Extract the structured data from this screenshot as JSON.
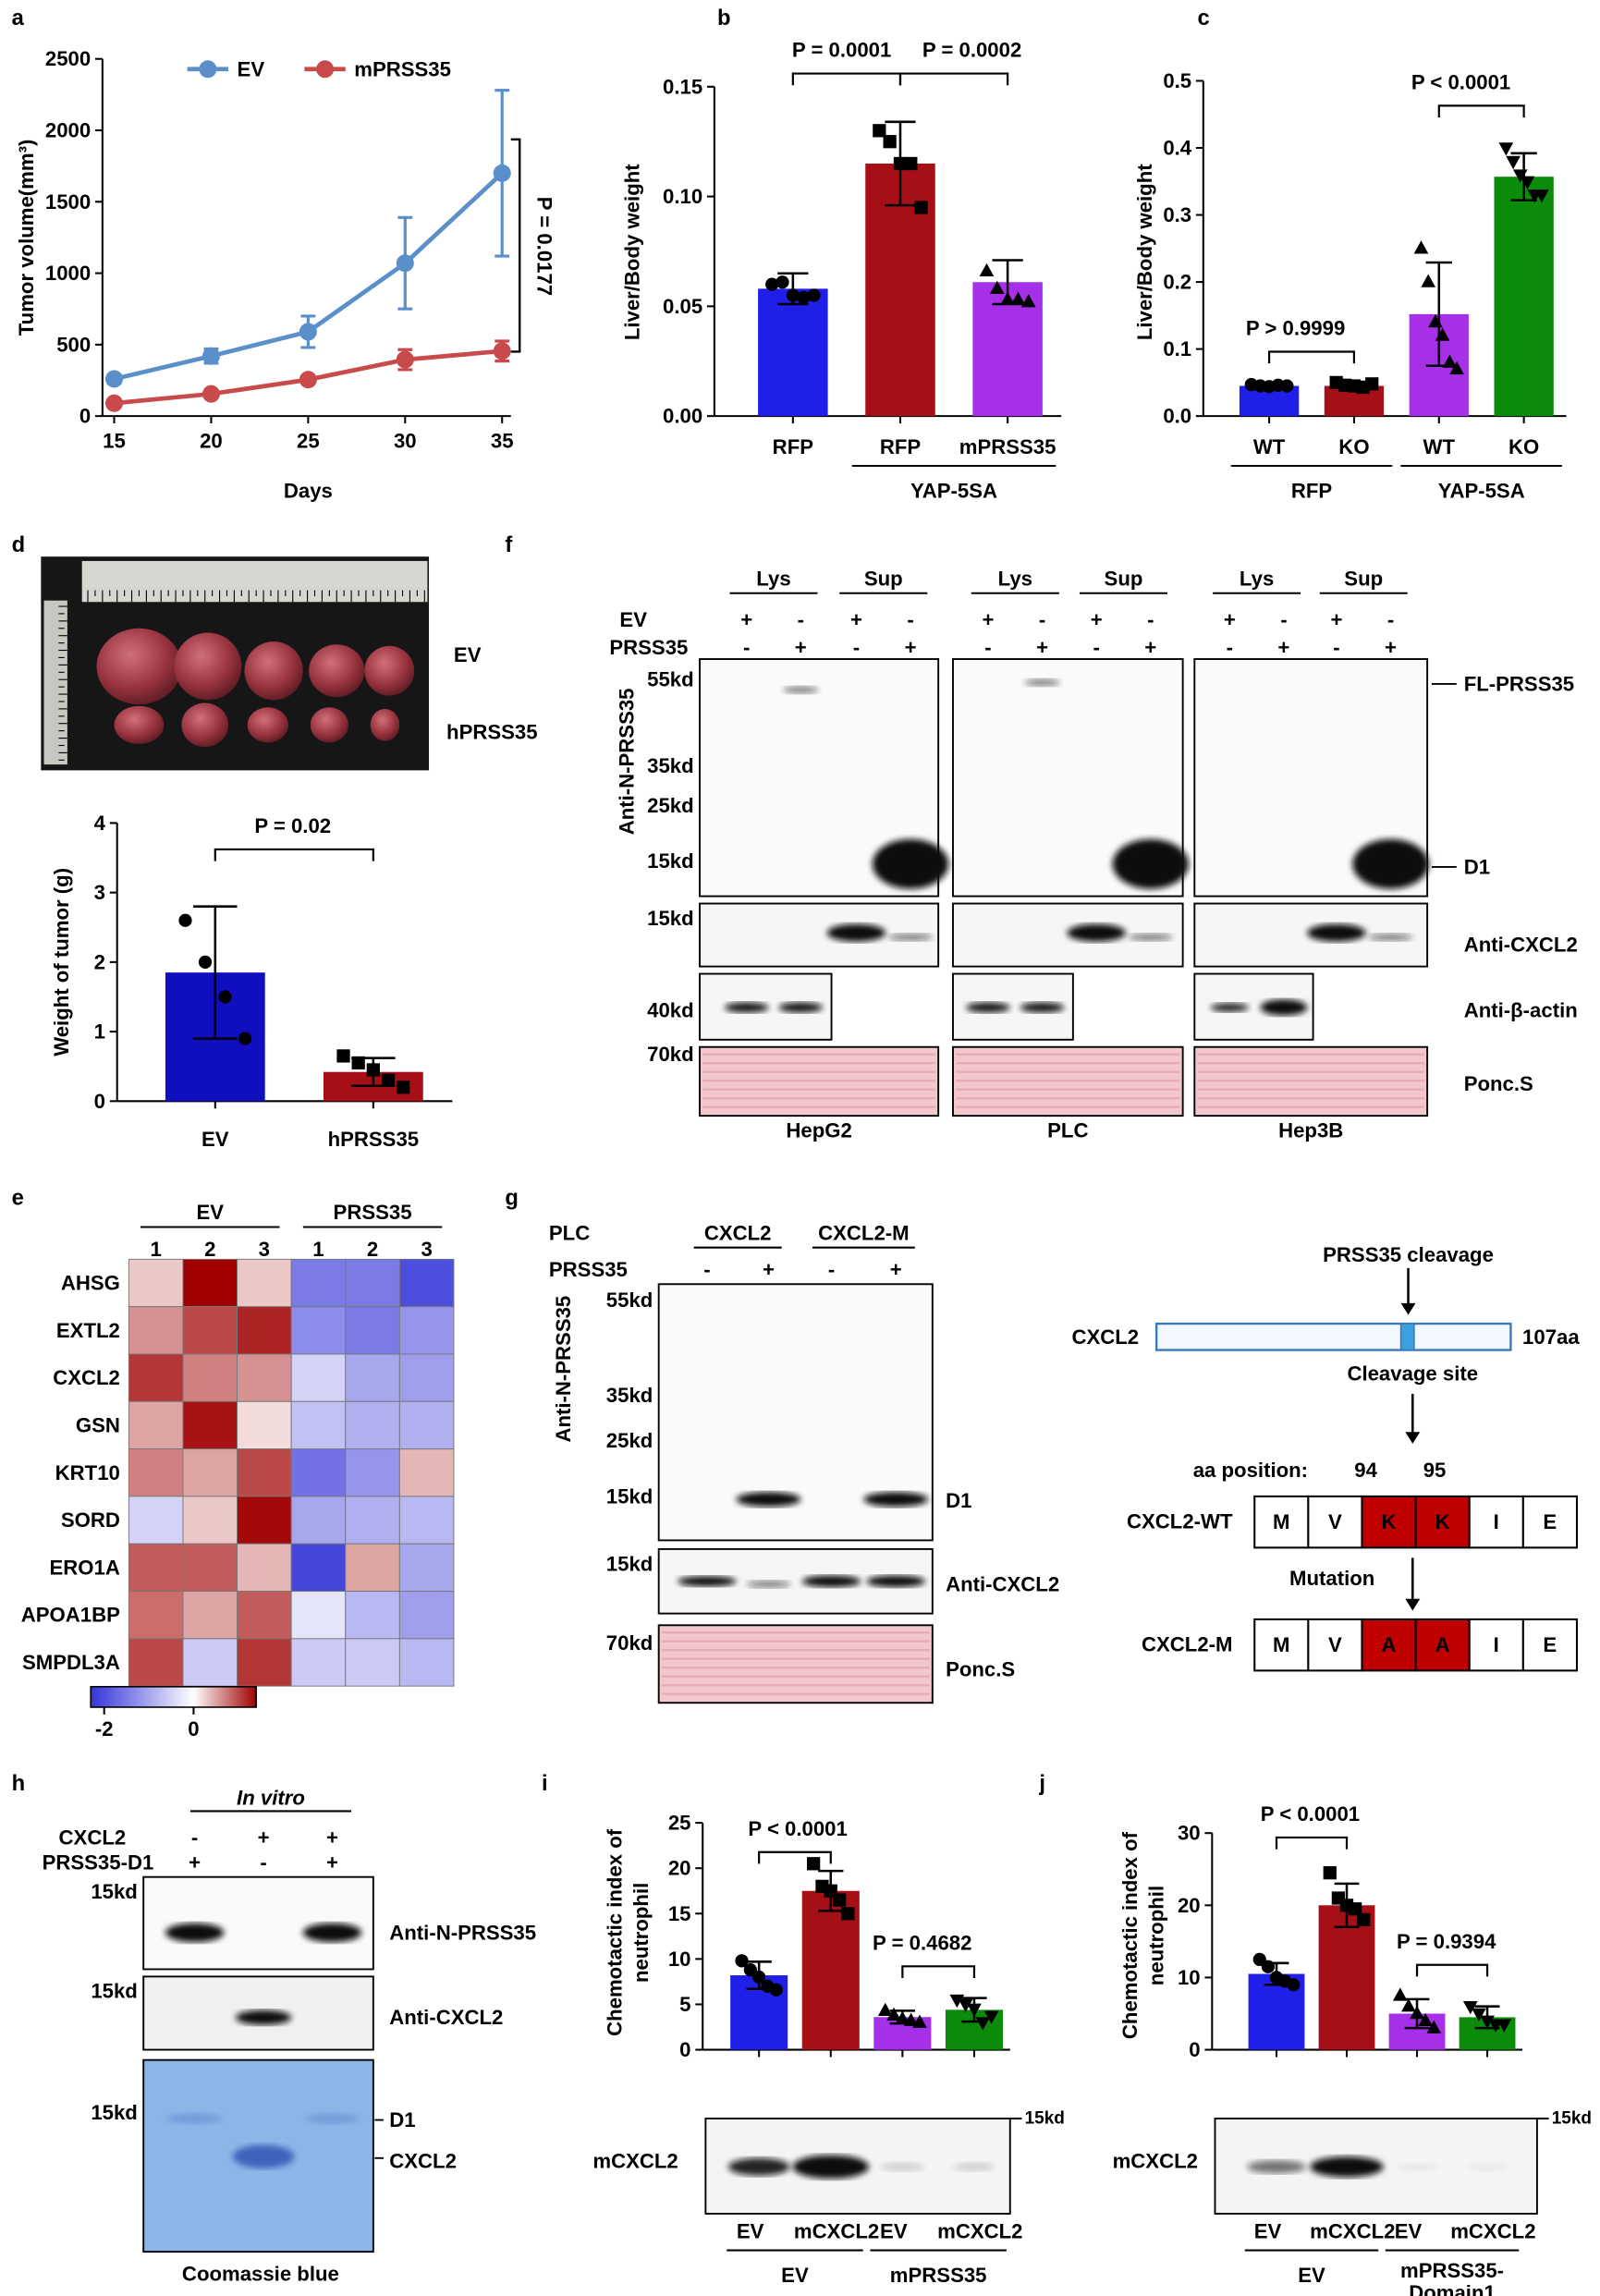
{
  "panel_labels": [
    "a",
    "b",
    "c",
    "d",
    "e",
    "f",
    "g",
    "h",
    "i",
    "j"
  ],
  "chart_data": [
    {
      "type": "line",
      "x": [
        15,
        20,
        25,
        30,
        35
      ],
      "xlim": [
        15,
        35
      ],
      "xticks": [
        15,
        20,
        25,
        30,
        35
      ],
      "ylim": [
        0,
        2500
      ],
      "yticks": [
        0,
        500,
        1000,
        1500,
        2000,
        2500
      ],
      "xlabel": "Days",
      "ylabel": "Tumor volume(mm³)",
      "series": [
        {
          "name": "EV",
          "color": "#5b8fc9",
          "values": [
            260,
            420,
            590,
            1070,
            1700
          ],
          "errors": [
            30,
            50,
            110,
            320,
            580
          ]
        },
        {
          "name": "mPRSS35",
          "color": "#c94a4a",
          "values": [
            90,
            155,
            255,
            395,
            455
          ],
          "errors": [
            15,
            15,
            20,
            70,
            70
          ]
        }
      ],
      "annotations": [
        "P = 0.0177"
      ]
    },
    {
      "type": "bar",
      "categories": [
        "RFP",
        "RFP",
        "mPRSS35"
      ],
      "groups": [
        {
          "label": "YAP-5SA",
          "span": [
            1,
            2
          ]
        }
      ],
      "values": [
        0.058,
        0.115,
        0.061
      ],
      "errors": [
        0.007,
        0.019,
        0.01
      ],
      "points": [
        [
          0.06,
          0.061,
          0.055,
          0.054,
          0.055
        ],
        [
          0.13,
          0.125,
          0.115,
          0.115,
          0.095
        ],
        [
          0.066,
          0.058,
          0.053,
          0.053,
          0.052
        ]
      ],
      "colors": [
        "#1f1fe8",
        "#a50f15",
        "#a530e8"
      ],
      "point_shapes": [
        "circle",
        "square",
        "triangle"
      ],
      "ylim": [
        0,
        0.15
      ],
      "yticks": [
        {
          "value": 0,
          "label": "0.00"
        },
        0.05,
        {
          "value": 0.1,
          "label": "0.10"
        },
        0.15
      ],
      "ylabel": "Liver/Body weight",
      "annotations": [
        "P = 0.0001",
        "P = 0.0002"
      ]
    },
    {
      "type": "bar",
      "categories": [
        "WT",
        "KO",
        "WT",
        "KO"
      ],
      "groups": [
        {
          "label": "RFP",
          "span": [
            0,
            1
          ]
        },
        {
          "label": "YAP-5SA",
          "span": [
            2,
            3
          ]
        }
      ],
      "values": [
        0.045,
        0.045,
        0.152,
        0.357
      ],
      "errors": [
        0.003,
        0.006,
        0.077,
        0.035
      ],
      "points": [
        [
          0.047,
          0.045,
          0.044,
          0.046,
          0.045
        ],
        [
          0.05,
          0.046,
          0.045,
          0.043,
          0.048
        ],
        [
          0.25,
          0.2,
          0.14,
          0.12,
          0.08,
          0.07
        ],
        [
          0.4,
          0.38,
          0.36,
          0.35,
          0.33,
          0.33
        ]
      ],
      "colors": [
        "#1f1fe8",
        "#a50f15",
        "#a530e8",
        "#0a8c0a"
      ],
      "point_shapes": [
        "circle",
        "square",
        "triangle",
        "triangle-down"
      ],
      "ylim": [
        0,
        0.5
      ],
      "yticks": [
        {
          "value": 0,
          "label": "0.0"
        },
        0.1,
        0.2,
        0.3,
        0.4,
        0.5
      ],
      "ylabel": "Liver/Body weight",
      "annotations": [
        "P > 0.9999",
        "P < 0.0001"
      ]
    },
    {
      "type": "bar",
      "categories": [
        "EV",
        "hPRSS35"
      ],
      "values": [
        1.85,
        0.42
      ],
      "errors": [
        0.95,
        0.2
      ],
      "points": [
        [
          2.6,
          2.0,
          1.5,
          0.9
        ],
        [
          0.65,
          0.55,
          0.45,
          0.3,
          0.2
        ]
      ],
      "colors": [
        "#0f0fc0",
        "#a50f15"
      ],
      "point_shapes": [
        "circle",
        "square"
      ],
      "ylim": [
        0,
        4
      ],
      "yticks": [
        0,
        1,
        2,
        3,
        4
      ],
      "ylabel": "Weight of tumor (g)",
      "annotations": [
        "P = 0.02"
      ]
    },
    {
      "type": "heatmap",
      "rows": [
        "AHSG",
        "EXTL2",
        "CXCL2",
        "GSN",
        "KRT10",
        "SORD",
        "ERO1A",
        "APOA1BP",
        "SMPDL3A"
      ],
      "columns": [
        "1",
        "2",
        "3",
        "1",
        "2",
        "3"
      ],
      "column_groups": [
        {
          "label": "EV",
          "span": [
            0,
            2
          ]
        },
        {
          "label": "PRSS35",
          "span": [
            3,
            5
          ]
        }
      ],
      "values": [
        [
          0.3,
          1.4,
          0.3,
          -1.5,
          -1.5,
          -2
        ],
        [
          0.6,
          1.0,
          1.2,
          -1.3,
          -1.5,
          -1.2
        ],
        [
          1.1,
          0.7,
          0.6,
          -0.5,
          -1.0,
          -1.1
        ],
        [
          0.5,
          1.3,
          0.2,
          -0.7,
          -0.9,
          -0.9
        ],
        [
          0.7,
          0.5,
          1.0,
          -1.6,
          -1.2,
          0.4
        ],
        [
          -0.5,
          0.3,
          1.35,
          -1.0,
          -0.9,
          -0.8
        ],
        [
          0.9,
          0.9,
          0.4,
          -2.1,
          0.5,
          -1.0
        ],
        [
          0.8,
          0.5,
          0.9,
          -0.3,
          -0.8,
          -1.1
        ],
        [
          1.0,
          -0.6,
          1.1,
          -0.6,
          -0.6,
          -0.8
        ]
      ],
      "clim": [
        -2.3,
        1.4
      ],
      "colorbar_ticks": [
        -2,
        0
      ],
      "low_color": "#3434d9",
      "mid_color": "#ffffff",
      "high_color": "#a00000",
      "highlight_row": 2,
      "highlight_color": "#e41a1c"
    },
    {
      "type": "bar",
      "categories": [
        "EV",
        "mCXCL2",
        "EV",
        "mCXCL2"
      ],
      "groups": [
        {
          "label": "EV",
          "span": [
            0,
            1
          ]
        },
        {
          "label": "mPRSS35",
          "span": [
            2,
            3
          ]
        }
      ],
      "values": [
        8.2,
        17.5,
        3.6,
        4.4
      ],
      "errors": [
        1.5,
        2.2,
        0.7,
        1.3
      ],
      "points": [
        [
          9.8,
          8.8,
          8,
          7,
          6.6
        ],
        [
          20.5,
          18,
          17.5,
          16.5,
          15
        ],
        [
          4.3,
          3.8,
          3.4,
          3.2,
          3
        ],
        [
          5.5,
          5,
          4.5,
          3,
          3.7
        ]
      ],
      "colors": [
        "#1f1fe8",
        "#a50f15",
        "#a530e8",
        "#0a8c0a"
      ],
      "point_shapes": [
        "circle",
        "square",
        "triangle",
        "triangle-down"
      ],
      "ylim": [
        0,
        25
      ],
      "yticks": [
        0,
        5,
        10,
        15,
        20,
        25
      ],
      "ylabel": [
        "Chemotactic index of",
        "neutrophil"
      ],
      "annotations": [
        "P < 0.0001",
        "P = 0.4682"
      ],
      "blot": {
        "label": "mCXCL2",
        "marker": "15kd"
      }
    },
    {
      "type": "bar",
      "categories": [
        "EV",
        "mCXCL2",
        "EV",
        "mCXCL2"
      ],
      "groups": [
        {
          "label": "EV",
          "span": [
            0,
            1
          ]
        },
        {
          "label": [
            "mPRSS35-",
            "Domain1"
          ],
          "span": [
            2,
            3
          ]
        }
      ],
      "values": [
        10.5,
        20,
        5,
        4.5
      ],
      "errors": [
        1.5,
        3,
        2,
        1.5
      ],
      "points": [
        [
          12.5,
          11.5,
          10,
          9.5,
          9
        ],
        [
          24.5,
          21,
          20,
          19.5,
          18
        ],
        [
          7.5,
          6,
          5,
          4,
          3
        ],
        [
          6,
          5,
          4,
          3.5,
          3.5
        ]
      ],
      "colors": [
        "#1f1fe8",
        "#a50f15",
        "#a530e8",
        "#0a8c0a"
      ],
      "point_shapes": [
        "circle",
        "square",
        "triangle",
        "triangle-down"
      ],
      "ylim": [
        0,
        30
      ],
      "yticks": [
        0,
        10,
        20,
        30
      ],
      "ylabel": [
        "Chemotactic index of",
        "neutrophil"
      ],
      "annotations": [
        "P < 0.0001",
        "P = 0.9394"
      ],
      "blot": {
        "label": "mCXCL2",
        "marker": "15kd"
      }
    }
  ],
  "panel_d_photo": {
    "labels": [
      "EV",
      "hPRSS35"
    ]
  },
  "panel_f": {
    "lanes": [
      "Lys",
      "Sup"
    ],
    "rows": [
      "EV",
      "PRSS35"
    ],
    "ev": [
      "+",
      "-",
      "+",
      "-"
    ],
    "prss35": [
      "-",
      "+",
      "-",
      "+"
    ],
    "antibody": "Anti-N-PRSS35",
    "markers": [
      "55kd",
      "35kd",
      "25kd",
      "15kd",
      "15kd",
      "40kd",
      "70kd"
    ],
    "bands": [
      "FL-PRSS35",
      "D1",
      "Anti-CXCL2",
      "Anti-β-actin",
      "Ponc.S"
    ],
    "cells": [
      "HepG2",
      "PLC",
      "Hep3B"
    ]
  },
  "panel_g": {
    "cell": "PLC",
    "constructs": [
      "CXCL2",
      "CXCL2-M"
    ],
    "row": "PRSS35",
    "signs": [
      "-",
      "+",
      "-",
      "+"
    ],
    "antibody": "Anti-N-PRSS35",
    "markers": [
      "55kd",
      "35kd",
      "25kd",
      "15kd",
      "15kd",
      "70kd"
    ],
    "bands": [
      "D1",
      "Anti-CXCL2",
      "Ponc.S"
    ],
    "diagram": {
      "top": "PRSS35 cleavage",
      "protein": "CXCL2",
      "length": "107aa",
      "site": "Cleavage site",
      "position_label": "aa position:",
      "positions": [
        94,
        95
      ],
      "wt": {
        "name": "CXCL2-WT",
        "residues": [
          "M",
          "V",
          "K",
          "K",
          "I",
          "E"
        ]
      },
      "mutation": "Mutation",
      "mut": {
        "name": "CXCL2-M",
        "residues": [
          "M",
          "V",
          "A",
          "A",
          "I",
          "E"
        ]
      }
    }
  },
  "panel_h": {
    "title": "In vitro",
    "rows": [
      "CXCL2",
      "PRSS35-D1"
    ],
    "cxcl2": [
      "-",
      "+",
      "+"
    ],
    "d1": [
      "+",
      "-",
      "+"
    ],
    "markers": [
      "15kd",
      "15kd",
      "15kd"
    ],
    "bands": [
      "Anti-N-PRSS35",
      "Anti-CXCL2",
      "D1",
      "CXCL2"
    ],
    "stain": "Coomassie blue"
  }
}
